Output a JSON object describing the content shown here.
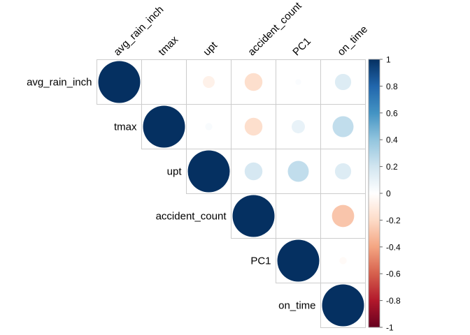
{
  "chart_data": {
    "type": "heatmap",
    "subtype": "correlation-matrix-upper-circles",
    "variables": [
      "avg_rain_inch",
      "tmax",
      "upt",
      "accident_count",
      "PC1",
      "on_time"
    ],
    "correlations": [
      [
        1.0,
        0.0,
        -0.08,
        -0.18,
        0.02,
        0.15
      ],
      [
        null,
        1.0,
        0.03,
        -0.18,
        0.1,
        0.25
      ],
      [
        null,
        null,
        1.0,
        0.18,
        0.25,
        0.15
      ],
      [
        null,
        null,
        null,
        1.0,
        0.0,
        -0.28
      ],
      [
        null,
        null,
        null,
        null,
        1.0,
        -0.03
      ],
      [
        null,
        null,
        null,
        null,
        null,
        1.0
      ]
    ],
    "colorbar": {
      "ticks": [
        "1",
        "0.8",
        "0.6",
        "0.4",
        "0.2",
        "0",
        "-0.2",
        "-0.4",
        "-0.6",
        "-0.8",
        "-1"
      ],
      "range": [
        -1,
        1
      ],
      "colors": [
        "#67001F",
        "#B2182B",
        "#D6604D",
        "#F4A582",
        "#FDDBC7",
        "#FFFFFF",
        "#D1E5F0",
        "#92C5DE",
        "#4393C3",
        "#2166AC",
        "#053061"
      ]
    },
    "grid_color": "#cccccc"
  }
}
